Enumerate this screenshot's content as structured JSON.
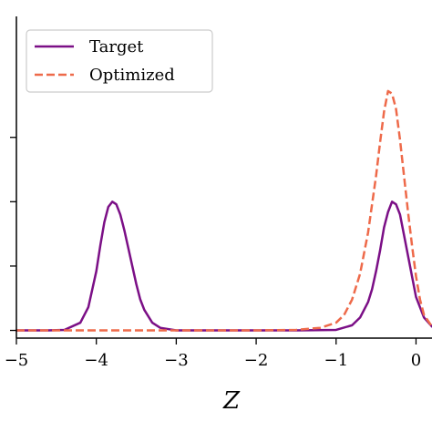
{
  "chart_data": {
    "type": "line",
    "title": "",
    "xlabel": "Z",
    "ylabel": "",
    "xlim": [
      -5,
      0.2
    ],
    "ylim": [
      -0.03,
      1.22
    ],
    "grid": false,
    "legend_position": "top-left",
    "x_ticks": [
      -5,
      -4,
      -3,
      -2,
      -1,
      0
    ],
    "x_tick_labels": [
      "−5",
      "−4",
      "−3",
      "−2",
      "−1",
      "0"
    ],
    "y_ticks": [
      0,
      0.25,
      0.5,
      0.75
    ],
    "y_tick_labels": [
      "",
      "",
      "",
      ""
    ],
    "series": [
      {
        "name": "Target",
        "color": "#7b0f86",
        "style": "solid",
        "x": [
          -5.0,
          -4.6,
          -4.4,
          -4.2,
          -4.1,
          -4.0,
          -3.95,
          -3.9,
          -3.85,
          -3.8,
          -3.75,
          -3.7,
          -3.65,
          -3.6,
          -3.55,
          -3.5,
          -3.45,
          -3.4,
          -3.3,
          -3.2,
          -3.0,
          -2.5,
          -2.0,
          -1.5,
          -1.0,
          -0.8,
          -0.7,
          -0.6,
          -0.55,
          -0.5,
          -0.45,
          -0.4,
          -0.35,
          -0.3,
          -0.25,
          -0.2,
          -0.15,
          -0.1,
          -0.05,
          0.0,
          0.1,
          0.2
        ],
        "y": [
          0.0,
          0.0,
          0.002,
          0.03,
          0.09,
          0.23,
          0.33,
          0.42,
          0.48,
          0.5,
          0.49,
          0.45,
          0.39,
          0.32,
          0.25,
          0.18,
          0.12,
          0.08,
          0.03,
          0.01,
          0.0,
          0.0,
          0.0,
          0.0,
          0.002,
          0.02,
          0.05,
          0.11,
          0.16,
          0.23,
          0.31,
          0.4,
          0.46,
          0.5,
          0.49,
          0.45,
          0.37,
          0.29,
          0.21,
          0.13,
          0.05,
          0.015
        ]
      },
      {
        "name": "Optimized",
        "color": "#ee6a4a",
        "style": "dashed",
        "x": [
          -5.0,
          -3.0,
          -2.0,
          -1.5,
          -1.2,
          -1.0,
          -0.9,
          -0.8,
          -0.7,
          -0.6,
          -0.5,
          -0.45,
          -0.4,
          -0.35,
          -0.3,
          -0.25,
          -0.2,
          -0.15,
          -0.1,
          -0.05,
          0.0,
          0.05,
          0.1,
          0.2
        ],
        "y": [
          0.0,
          0.0,
          0.0,
          0.002,
          0.01,
          0.03,
          0.06,
          0.12,
          0.22,
          0.38,
          0.6,
          0.73,
          0.85,
          0.93,
          0.92,
          0.86,
          0.74,
          0.6,
          0.46,
          0.33,
          0.21,
          0.12,
          0.06,
          0.015
        ]
      }
    ]
  }
}
